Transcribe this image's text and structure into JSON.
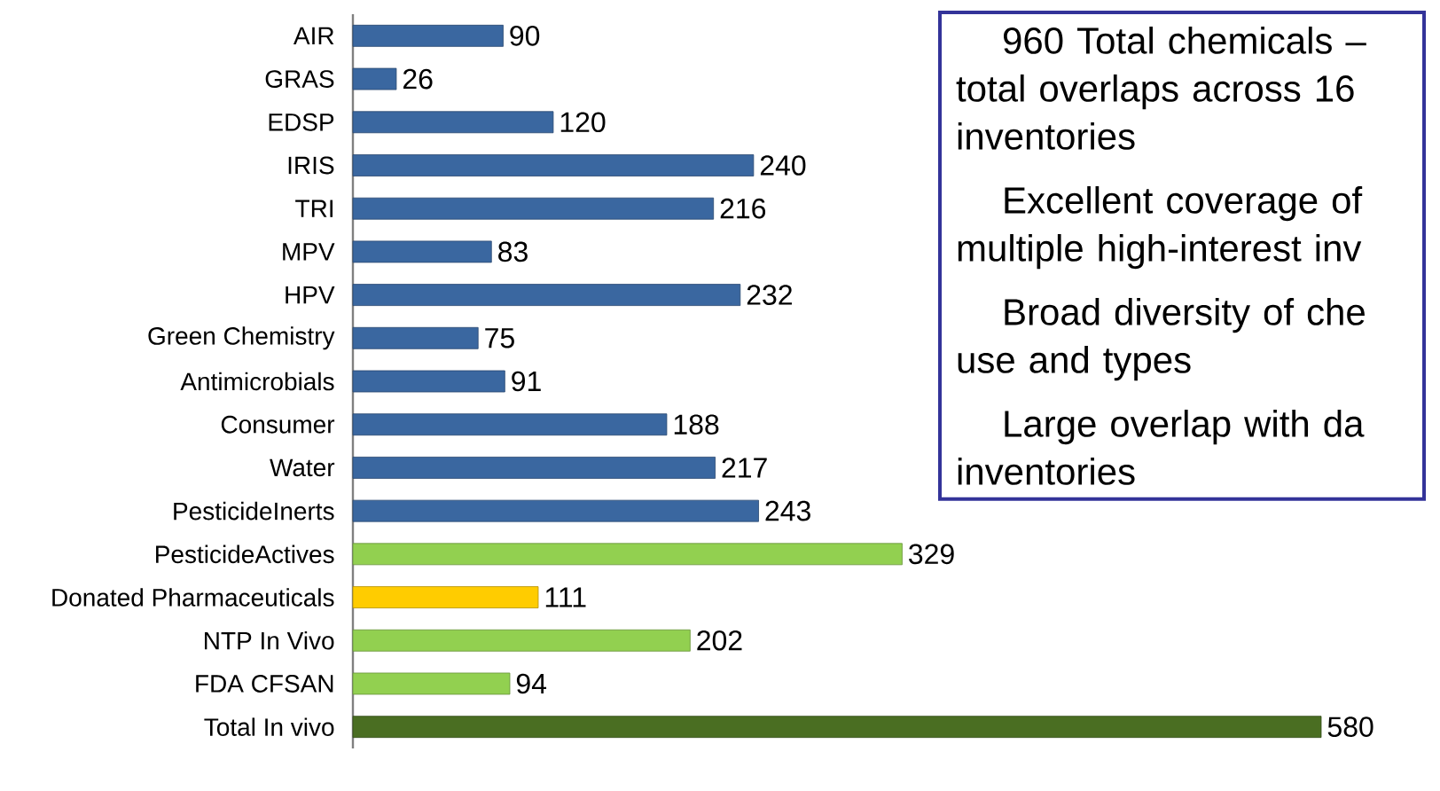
{
  "chart_data": {
    "type": "bar",
    "orientation": "horizontal",
    "categories": [
      "AIR",
      "GRAS",
      "EDSP",
      "IRIS",
      "TRI",
      "MPV",
      "HPV",
      "Green Chemistry",
      "Antimicrobials",
      "Consumer",
      "Water",
      "PesticideInerts",
      "PesticideActives",
      "Donated Pharmaceuticals",
      "NTP In Vivo",
      "FDA CFSAN",
      "Total In vivo"
    ],
    "values": [
      90,
      26,
      120,
      240,
      216,
      83,
      232,
      75,
      91,
      188,
      217,
      243,
      329,
      111,
      202,
      94,
      580
    ],
    "colors": [
      "#3a67a0",
      "#3a67a0",
      "#3a67a0",
      "#3a67a0",
      "#3a67a0",
      "#3a67a0",
      "#3a67a0",
      "#3a67a0",
      "#3a67a0",
      "#3a67a0",
      "#3a67a0",
      "#3a67a0",
      "#92d050",
      "#ffcc00",
      "#92d050",
      "#92d050",
      "#4a6e22"
    ],
    "data_labels": true,
    "tick_labels": "y",
    "annotations": [
      "960 Total chemicals –",
      "total overlaps across 16",
      "inventories",
      "Excellent coverage of",
      "multiple high-interest inv",
      "Broad diversity of che",
      "use and types",
      "Large overlap with da",
      "inventories"
    ]
  }
}
